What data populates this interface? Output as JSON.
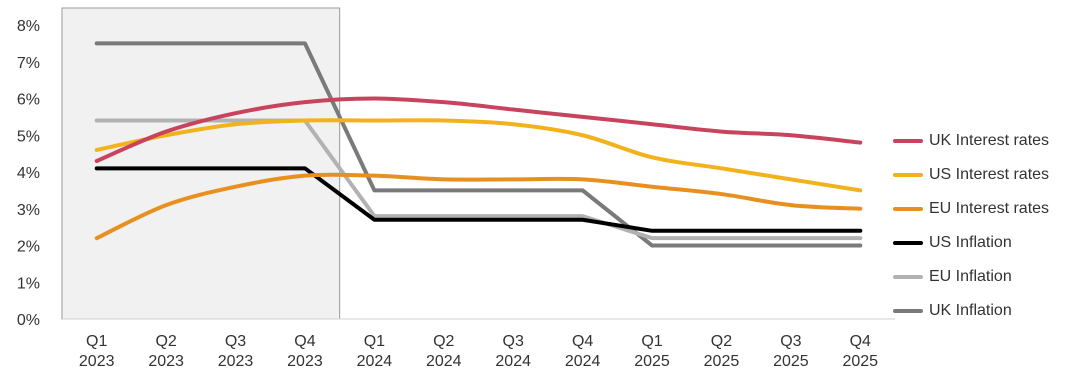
{
  "chart_data": {
    "type": "line",
    "title": "",
    "xlabel": "",
    "ylabel": "",
    "ylim": [
      0,
      8
    ],
    "yticks": [
      "0%",
      "1%",
      "2%",
      "3%",
      "4%",
      "5%",
      "6%",
      "7%",
      "8%"
    ],
    "categories": [
      [
        "Q1",
        "2023"
      ],
      [
        "Q2",
        "2023"
      ],
      [
        "Q3",
        "2023"
      ],
      [
        "Q4",
        "2023"
      ],
      [
        "Q1",
        "2024"
      ],
      [
        "Q2",
        "2024"
      ],
      [
        "Q3",
        "2024"
      ],
      [
        "Q4",
        "2024"
      ],
      [
        "Q1",
        "2025"
      ],
      [
        "Q2",
        "2025"
      ],
      [
        "Q3",
        "2025"
      ],
      [
        "Q4",
        "2025"
      ]
    ],
    "shaded_region": {
      "from_category": 0,
      "to_category": 3,
      "color": "#f1f1f1"
    },
    "grid": false,
    "legend_position": "right",
    "series": [
      {
        "name": "UK Interest rates",
        "color": "#c8445e",
        "shape": "smooth",
        "values": [
          4.3,
          5.1,
          5.6,
          5.9,
          6.0,
          5.9,
          5.7,
          5.5,
          5.3,
          5.1,
          5.0,
          4.8
        ]
      },
      {
        "name": "US Interest rates",
        "color": "#f2b21c",
        "shape": "smooth",
        "values": [
          4.6,
          5.0,
          5.3,
          5.4,
          5.4,
          5.4,
          5.3,
          5.0,
          4.4,
          4.1,
          3.8,
          3.5
        ]
      },
      {
        "name": "EU Interest rates",
        "color": "#e8901f",
        "shape": "smooth",
        "values": [
          2.2,
          3.1,
          3.6,
          3.9,
          3.9,
          3.8,
          3.8,
          3.8,
          3.6,
          3.4,
          3.1,
          3.0
        ]
      },
      {
        "name": "US Inflation",
        "color": "#000000",
        "shape": "straight",
        "values": [
          4.1,
          4.1,
          4.1,
          4.1,
          2.7,
          2.7,
          2.7,
          2.7,
          2.4,
          2.4,
          2.4,
          2.4
        ]
      },
      {
        "name": "EU Inflation",
        "color": "#b2b2b2",
        "shape": "straight",
        "values": [
          5.4,
          5.4,
          5.4,
          5.4,
          2.8,
          2.8,
          2.8,
          2.8,
          2.2,
          2.2,
          2.2,
          2.2
        ]
      },
      {
        "name": "UK Inflation",
        "color": "#7a7a7a",
        "shape": "straight",
        "values": [
          7.5,
          7.5,
          7.5,
          7.5,
          3.5,
          3.5,
          3.5,
          3.5,
          2.0,
          2.0,
          2.0,
          2.0
        ]
      }
    ]
  }
}
